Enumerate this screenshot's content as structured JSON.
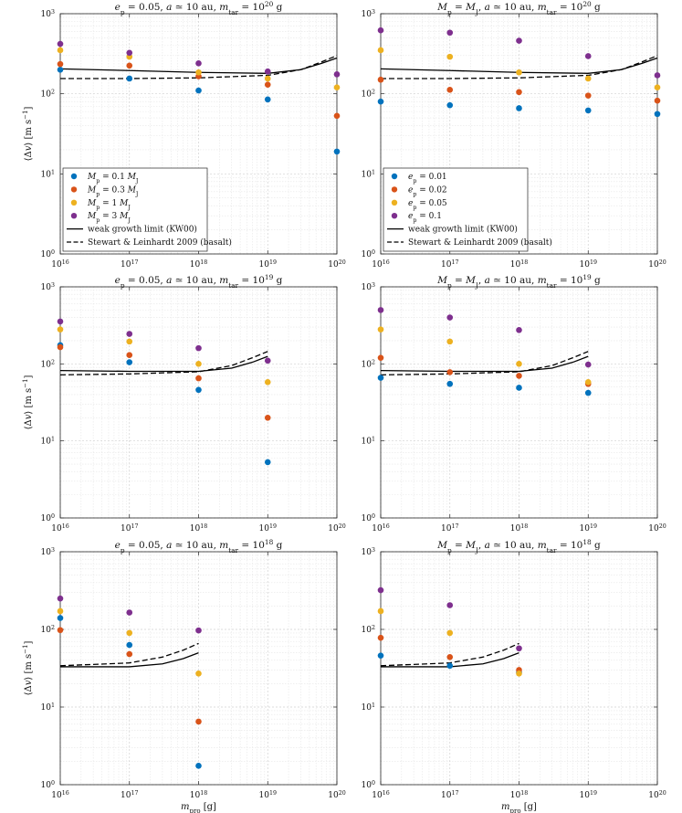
{
  "colors": {
    "blue": "#0072BD",
    "orange": "#D95319",
    "yellow": "#EDB120",
    "purple": "#7E2F8E",
    "line": "#000000"
  },
  "chart_data": [
    {
      "type": "scatter",
      "title": "e_p = 0.05, a ≃ 10 au, m_tar = 10^20 g",
      "title_parts": {
        "left": "e",
        "left_sub": "p",
        "mid": " = 0.05, a ≃ 10 au, m",
        "mid_sub": "tar",
        "eq": " = 10",
        "exp": "20",
        "unit": " g"
      },
      "xlabel": "m_pro [g]",
      "ylabel": "⟨Δv⟩ [m s^-1]",
      "xscale": "log",
      "yscale": "log",
      "xlim": [
        1e+16,
        1e+20
      ],
      "ylim": [
        1,
        1000
      ],
      "xticks": [
        "10^16",
        "10^17",
        "10^18",
        "10^19",
        "10^20"
      ],
      "yticks": [
        "10^0",
        "10^1",
        "10^2",
        "10^3"
      ],
      "show_xlabel": false,
      "series": [
        {
          "name": "M_p = 0.1 M_J",
          "color": "blue",
          "x": [
            1e+16,
            1e+17,
            1e+18,
            1e+19,
            1e+20
          ],
          "y": [
            200,
            155,
            110,
            85,
            19
          ]
        },
        {
          "name": "M_p = 0.3 M_J",
          "color": "orange",
          "x": [
            1e+16,
            1e+17,
            1e+18,
            1e+19,
            1e+20
          ],
          "y": [
            235,
            225,
            165,
            130,
            53
          ]
        },
        {
          "name": "M_p = 1 M_J",
          "color": "yellow",
          "x": [
            1e+16,
            1e+17,
            1e+18,
            1e+19,
            1e+20
          ],
          "y": [
            350,
            290,
            185,
            155,
            120
          ]
        },
        {
          "name": "M_p = 3 M_J",
          "color": "purple",
          "x": [
            1e+16,
            1e+17,
            1e+18,
            1e+19,
            1e+20
          ],
          "y": [
            420,
            325,
            240,
            190,
            175
          ]
        }
      ],
      "lines": [
        {
          "name": "weak growth limit (KW00)",
          "style": "solid",
          "x": [
            1e+16,
            1e+17,
            1e+18,
            1e+19,
            3e+19,
            6e+19,
            1e+20
          ],
          "y": [
            205,
            195,
            185,
            180,
            200,
            240,
            280
          ]
        },
        {
          "name": "Stewart & Leinhardt 2009 (basalt)",
          "style": "dashed",
          "x": [
            1e+16,
            1e+17,
            1e+18,
            1e+19,
            3e+19,
            6e+19,
            1e+20
          ],
          "y": [
            155,
            155,
            158,
            170,
            200,
            250,
            300
          ]
        }
      ],
      "legend": {
        "position": "bottom-left",
        "entries": [
          {
            "kind": "dot",
            "color": "blue",
            "label": {
              "a": "M",
              "a_sub": "p",
              "b": " = 0.1 ",
              "c": "M",
              "c_sub": "J"
            }
          },
          {
            "kind": "dot",
            "color": "orange",
            "label": {
              "a": "M",
              "a_sub": "p",
              "b": " = 0.3 ",
              "c": "M",
              "c_sub": "J"
            }
          },
          {
            "kind": "dot",
            "color": "yellow",
            "label": {
              "a": "M",
              "a_sub": "p",
              "b": " = 1 ",
              "c": "M",
              "c_sub": "J"
            }
          },
          {
            "kind": "dot",
            "color": "purple",
            "label": {
              "a": "M",
              "a_sub": "p",
              "b": " = 3 ",
              "c": "M",
              "c_sub": "J"
            }
          },
          {
            "kind": "solid",
            "text": "weak growth limit (KW00)"
          },
          {
            "kind": "dashed",
            "text": "Stewart & Leinhardt 2009 (basalt)"
          }
        ]
      }
    },
    {
      "type": "scatter",
      "title": "M_p = M_J, a ≃ 10 au, m_tar = 10^20 g",
      "title_parts": {
        "left": "M",
        "left_sub": "p",
        "mid": " = M",
        "mid2_sub": "J",
        "mid2": ", a ≃ 10 au, m",
        "mid_sub": "tar",
        "eq": " = 10",
        "exp": "20",
        "unit": " g"
      },
      "xlabel": "m_pro [g]",
      "ylabel": "⟨Δv⟩ [m s^-1]",
      "xscale": "log",
      "yscale": "log",
      "xlim": [
        1e+16,
        1e+20
      ],
      "ylim": [
        1,
        1000
      ],
      "xticks": [
        "10^16",
        "10^17",
        "10^18",
        "10^19",
        "10^20"
      ],
      "yticks": [
        "10^0",
        "10^1",
        "10^2",
        "10^3"
      ],
      "show_xlabel": false,
      "series": [
        {
          "name": "e_p = 0.01",
          "color": "blue",
          "x": [
            1e+16,
            1e+17,
            1e+18,
            1e+19,
            1e+20
          ],
          "y": [
            80,
            72,
            66,
            62,
            56
          ]
        },
        {
          "name": "e_p = 0.02",
          "color": "orange",
          "x": [
            1e+16,
            1e+17,
            1e+18,
            1e+19,
            1e+20
          ],
          "y": [
            150,
            112,
            105,
            95,
            82
          ]
        },
        {
          "name": "e_p = 0.05",
          "color": "yellow",
          "x": [
            1e+16,
            1e+17,
            1e+18,
            1e+19,
            1e+20
          ],
          "y": [
            350,
            290,
            185,
            155,
            120
          ]
        },
        {
          "name": "e_p = 0.1",
          "color": "purple",
          "x": [
            1e+16,
            1e+17,
            1e+18,
            1e+19,
            1e+20
          ],
          "y": [
            620,
            580,
            460,
            295,
            170
          ]
        }
      ],
      "lines": [
        {
          "name": "weak growth limit (KW00)",
          "style": "solid",
          "x": [
            1e+16,
            1e+17,
            1e+18,
            1e+19,
            3e+19,
            6e+19,
            1e+20
          ],
          "y": [
            205,
            195,
            185,
            180,
            200,
            240,
            280
          ]
        },
        {
          "name": "Stewart & Leinhardt 2009 (basalt)",
          "style": "dashed",
          "x": [
            1e+16,
            1e+17,
            1e+18,
            1e+19,
            3e+19,
            6e+19,
            1e+20
          ],
          "y": [
            155,
            155,
            158,
            170,
            200,
            250,
            300
          ]
        }
      ],
      "legend": {
        "position": "bottom-left",
        "entries": [
          {
            "kind": "dot",
            "color": "blue",
            "label": {
              "a": "e",
              "a_sub": "p",
              "b": " = 0.01"
            }
          },
          {
            "kind": "dot",
            "color": "orange",
            "label": {
              "a": "e",
              "a_sub": "p",
              "b": " = 0.02"
            }
          },
          {
            "kind": "dot",
            "color": "yellow",
            "label": {
              "a": "e",
              "a_sub": "p",
              "b": " = 0.05"
            }
          },
          {
            "kind": "dot",
            "color": "purple",
            "label": {
              "a": "e",
              "a_sub": "p",
              "b": " = 0.1"
            }
          },
          {
            "kind": "solid",
            "text": "weak growth limit (KW00)"
          },
          {
            "kind": "dashed",
            "text": "Stewart & Leinhardt 2009 (basalt)"
          }
        ]
      }
    },
    {
      "type": "scatter",
      "title": "e_p = 0.05, a ≃ 10 au, m_tar = 10^19 g",
      "title_parts": {
        "left": "e",
        "left_sub": "p",
        "mid": " = 0.05, a ≃ 10 au, m",
        "mid_sub": "tar",
        "eq": " = 10",
        "exp": "19",
        "unit": " g"
      },
      "xlabel": "m_pro [g]",
      "ylabel": "⟨Δv⟩ [m s^-1]",
      "xscale": "log",
      "yscale": "log",
      "xlim": [
        1e+16,
        1e+20
      ],
      "ylim": [
        1,
        1000
      ],
      "xticks": [
        "10^16",
        "10^17",
        "10^18",
        "10^19",
        "10^20"
      ],
      "yticks": [
        "10^0",
        "10^1",
        "10^2",
        "10^3"
      ],
      "show_xlabel": false,
      "series": [
        {
          "name": "M_p = 0.1 M_J",
          "color": "blue",
          "x": [
            1e+16,
            1e+17,
            1e+18,
            1e+19
          ],
          "y": [
            175,
            105,
            46,
            5.3
          ]
        },
        {
          "name": "M_p = 0.3 M_J",
          "color": "orange",
          "x": [
            1e+16,
            1e+17,
            1e+18,
            1e+19
          ],
          "y": [
            165,
            130,
            65,
            20
          ]
        },
        {
          "name": "M_p = 1 M_J",
          "color": "yellow",
          "x": [
            1e+16,
            1e+17,
            1e+18,
            1e+19
          ],
          "y": [
            280,
            195,
            100,
            58
          ]
        },
        {
          "name": "M_p = 3 M_J",
          "color": "purple",
          "x": [
            1e+16,
            1e+17,
            1e+18,
            1e+19
          ],
          "y": [
            355,
            245,
            160,
            110
          ]
        }
      ],
      "lines": [
        {
          "name": "weak growth limit (KW00)",
          "style": "solid",
          "x": [
            1e+16,
            1e+17,
            1e+18,
            3e+18,
            6e+18,
            1e+19
          ],
          "y": [
            82,
            80,
            80,
            88,
            105,
            125
          ]
        },
        {
          "name": "Stewart & Leinhardt 2009 (basalt)",
          "style": "dashed",
          "x": [
            1e+16,
            1e+17,
            1e+18,
            3e+18,
            6e+18,
            1e+19
          ],
          "y": [
            72,
            74,
            79,
            95,
            120,
            145
          ]
        }
      ]
    },
    {
      "type": "scatter",
      "title": "M_p = M_J, a ≃ 10 au, m_tar = 10^19 g",
      "title_parts": {
        "left": "M",
        "left_sub": "p",
        "mid": " = M",
        "mid2_sub": "J",
        "mid2": ", a ≃ 10 au, m",
        "mid_sub": "tar",
        "eq": " = 10",
        "exp": "19",
        "unit": " g"
      },
      "xlabel": "m_pro [g]",
      "ylabel": "⟨Δv⟩ [m s^-1]",
      "xscale": "log",
      "yscale": "log",
      "xlim": [
        1e+16,
        1e+20
      ],
      "ylim": [
        1,
        1000
      ],
      "xticks": [
        "10^16",
        "10^17",
        "10^18",
        "10^19",
        "10^20"
      ],
      "yticks": [
        "10^0",
        "10^1",
        "10^2",
        "10^3"
      ],
      "show_xlabel": false,
      "series": [
        {
          "name": "e_p = 0.01",
          "color": "blue",
          "x": [
            1e+16,
            1e+17,
            1e+18,
            1e+19
          ],
          "y": [
            66,
            55,
            49,
            42
          ]
        },
        {
          "name": "e_p = 0.02",
          "color": "orange",
          "x": [
            1e+16,
            1e+17,
            1e+18,
            1e+19
          ],
          "y": [
            120,
            78,
            70,
            55
          ]
        },
        {
          "name": "e_p = 0.05",
          "color": "yellow",
          "x": [
            1e+16,
            1e+17,
            1e+18,
            1e+19
          ],
          "y": [
            280,
            195,
            100,
            58
          ]
        },
        {
          "name": "e_p = 0.1",
          "color": "purple",
          "x": [
            1e+16,
            1e+17,
            1e+18,
            1e+19
          ],
          "y": [
            500,
            400,
            275,
            98
          ]
        }
      ],
      "lines": [
        {
          "name": "weak growth limit (KW00)",
          "style": "solid",
          "x": [
            1e+16,
            1e+17,
            1e+18,
            3e+18,
            6e+18,
            1e+19
          ],
          "y": [
            82,
            80,
            80,
            88,
            105,
            125
          ]
        },
        {
          "name": "Stewart & Leinhardt 2009 (basalt)",
          "style": "dashed",
          "x": [
            1e+16,
            1e+17,
            1e+18,
            3e+18,
            6e+18,
            1e+19
          ],
          "y": [
            72,
            74,
            79,
            95,
            120,
            145
          ]
        }
      ]
    },
    {
      "type": "scatter",
      "title": "e_p = 0.05, a ≃ 10 au, m_tar = 10^18 g",
      "title_parts": {
        "left": "e",
        "left_sub": "p",
        "mid": " = 0.05, a ≃ 10 au, m",
        "mid_sub": "tar",
        "eq": " = 10",
        "exp": "18",
        "unit": " g"
      },
      "xlabel": "m_pro [g]",
      "ylabel": "⟨Δv⟩ [m s^-1]",
      "xscale": "log",
      "yscale": "log",
      "xlim": [
        1e+16,
        1e+20
      ],
      "ylim": [
        1,
        1000
      ],
      "xticks": [
        "10^16",
        "10^17",
        "10^18",
        "10^19",
        "10^20"
      ],
      "yticks": [
        "10^0",
        "10^1",
        "10^2",
        "10^3"
      ],
      "show_xlabel": true,
      "series": [
        {
          "name": "M_p = 0.1 M_J",
          "color": "blue",
          "x": [
            1e+16,
            1e+17,
            1e+18
          ],
          "y": [
            140,
            63,
            1.75
          ]
        },
        {
          "name": "M_p = 0.3 M_J",
          "color": "orange",
          "x": [
            1e+16,
            1e+17,
            1e+18
          ],
          "y": [
            98,
            48,
            6.5
          ]
        },
        {
          "name": "M_p = 1 M_J",
          "color": "yellow",
          "x": [
            1e+16,
            1e+17,
            1e+18
          ],
          "y": [
            172,
            90,
            27
          ]
        },
        {
          "name": "M_p = 3 M_J",
          "color": "purple",
          "x": [
            1e+16,
            1e+17,
            1e+18
          ],
          "y": [
            250,
            165,
            97
          ]
        }
      ],
      "lines": [
        {
          "name": "weak growth limit (KW00)",
          "style": "solid",
          "x": [
            1e+16,
            1e+17,
            3e+17,
            6e+17,
            1e+18
          ],
          "y": [
            33,
            33,
            36,
            42,
            50
          ]
        },
        {
          "name": "Stewart & Leinhardt 2009 (basalt)",
          "style": "dashed",
          "x": [
            1e+16,
            1e+17,
            3e+17,
            6e+17,
            1e+18
          ],
          "y": [
            34,
            37,
            44,
            54,
            66
          ]
        }
      ]
    },
    {
      "type": "scatter",
      "title": "M_p = M_J, a ≃ 10 au, m_tar = 10^18 g",
      "title_parts": {
        "left": "M",
        "left_sub": "p",
        "mid": " = M",
        "mid2_sub": "J",
        "mid2": ", a ≃ 10 au, m",
        "mid_sub": "tar",
        "eq": " = 10",
        "exp": "18",
        "unit": " g"
      },
      "xlabel": "m_pro [g]",
      "ylabel": "⟨Δv⟩ [m s^-1]",
      "xscale": "log",
      "yscale": "log",
      "xlim": [
        1e+16,
        1e+20
      ],
      "ylim": [
        1,
        1000
      ],
      "xticks": [
        "10^16",
        "10^17",
        "10^18",
        "10^19",
        "10^20"
      ],
      "yticks": [
        "10^0",
        "10^1",
        "10^2",
        "10^3"
      ],
      "show_xlabel": true,
      "series": [
        {
          "name": "e_p = 0.01",
          "color": "blue",
          "x": [
            1e+16,
            1e+17,
            1e+18
          ],
          "y": [
            46,
            34,
            28
          ]
        },
        {
          "name": "e_p = 0.02",
          "color": "orange",
          "x": [
            1e+16,
            1e+17,
            1e+18
          ],
          "y": [
            78,
            44,
            30
          ]
        },
        {
          "name": "e_p = 0.05",
          "color": "yellow",
          "x": [
            1e+16,
            1e+17,
            1e+18
          ],
          "y": [
            172,
            90,
            27
          ]
        },
        {
          "name": "e_p = 0.1",
          "color": "purple",
          "x": [
            1e+16,
            1e+17,
            1e+18
          ],
          "y": [
            320,
            205,
            57
          ]
        }
      ],
      "lines": [
        {
          "name": "weak growth limit (KW00)",
          "style": "solid",
          "x": [
            1e+16,
            1e+17,
            3e+17,
            6e+17,
            1e+18
          ],
          "y": [
            33,
            33,
            36,
            42,
            50
          ]
        },
        {
          "name": "Stewart & Leinhardt 2009 (basalt)",
          "style": "dashed",
          "x": [
            1e+16,
            1e+17,
            3e+17,
            6e+17,
            1e+18
          ],
          "y": [
            34,
            37,
            44,
            54,
            66
          ]
        }
      ]
    }
  ]
}
